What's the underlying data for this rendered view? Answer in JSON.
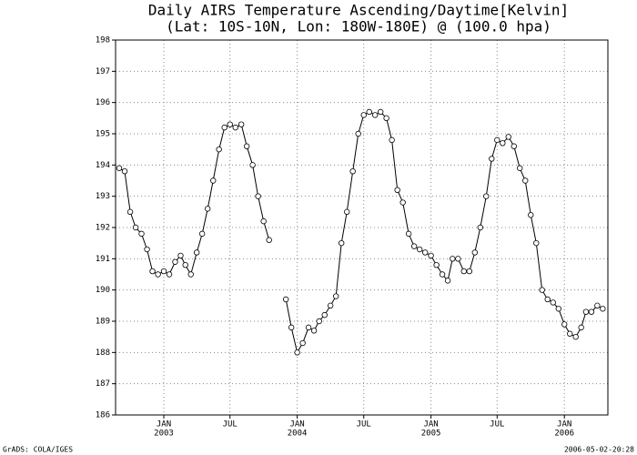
{
  "chart_data": {
    "type": "line",
    "title": "Daily AIRS Temperature Ascending/Daytime[Kelvin]",
    "subtitle": "(Lat: 10S-10N, Lon: 180W-180E) @ (100.0 hpa)",
    "footer_left": "GrADS: COLA/IGES",
    "footer_right": "2006-05-02-20:28",
    "color": "#000000",
    "grid": true,
    "xlim": [
      "2002-08-22",
      "2006-04-30"
    ],
    "xticks": [
      {
        "value": "2003-01-01",
        "label": "JAN",
        "sublabel": "2003"
      },
      {
        "value": "2003-07-01",
        "label": "JUL"
      },
      {
        "value": "2004-01-01",
        "label": "JAN",
        "sublabel": "2004"
      },
      {
        "value": "2004-07-01",
        "label": "JUL"
      },
      {
        "value": "2005-01-01",
        "label": "JAN",
        "sublabel": "2005"
      },
      {
        "value": "2005-07-01",
        "label": "JUL"
      },
      {
        "value": "2006-01-01",
        "label": "JAN",
        "sublabel": "2006"
      }
    ],
    "ylim": [
      186,
      198
    ],
    "yticks": [
      186,
      187,
      188,
      189,
      190,
      191,
      192,
      193,
      194,
      195,
      196,
      197,
      198
    ],
    "x": [
      "2002-09-01",
      "2002-09-16",
      "2002-10-01",
      "2002-10-16",
      "2002-11-01",
      "2002-11-16",
      "2002-12-01",
      "2002-12-16",
      "2003-01-01",
      "2003-01-16",
      "2003-02-01",
      "2003-02-16",
      "2003-03-01",
      "2003-03-16",
      "2003-04-01",
      "2003-04-16",
      "2003-05-01",
      "2003-05-16",
      "2003-06-01",
      "2003-06-16",
      "2003-07-01",
      "2003-07-16",
      "2003-08-01",
      "2003-08-16",
      "2003-09-01",
      "2003-09-16",
      "2003-10-01",
      "2003-10-16",
      "2003-11-01",
      "2003-11-16",
      "2003-12-01",
      "2003-12-16",
      "2004-01-01",
      "2004-01-16",
      "2004-02-01",
      "2004-02-16",
      "2004-03-01",
      "2004-03-16",
      "2004-04-01",
      "2004-04-16",
      "2004-05-01",
      "2004-05-16",
      "2004-06-01",
      "2004-06-16",
      "2004-07-01",
      "2004-07-16",
      "2004-08-01",
      "2004-08-16",
      "2004-09-01",
      "2004-09-16",
      "2004-10-01",
      "2004-10-16",
      "2004-11-01",
      "2004-11-16",
      "2004-12-01",
      "2004-12-16",
      "2005-01-01",
      "2005-01-16",
      "2005-02-01",
      "2005-02-16",
      "2005-03-01",
      "2005-03-16",
      "2005-04-01",
      "2005-04-16",
      "2005-05-01",
      "2005-05-16",
      "2005-06-01",
      "2005-06-16",
      "2005-07-01",
      "2005-07-16",
      "2005-08-01",
      "2005-08-16",
      "2005-09-01",
      "2005-09-16",
      "2005-10-01",
      "2005-10-16",
      "2005-11-01",
      "2005-11-16",
      "2005-12-01",
      "2005-12-16",
      "2006-01-01",
      "2006-01-16",
      "2006-02-01",
      "2006-02-16",
      "2006-03-01",
      "2006-03-16",
      "2006-04-01",
      "2006-04-16"
    ],
    "values": [
      193.9,
      193.8,
      192.5,
      192.0,
      191.8,
      191.3,
      190.6,
      190.5,
      190.6,
      190.5,
      190.9,
      191.1,
      190.8,
      190.5,
      191.2,
      191.8,
      192.6,
      193.5,
      194.5,
      195.2,
      195.3,
      195.2,
      195.3,
      194.6,
      194.0,
      193.0,
      192.2,
      191.6,
      null,
      null,
      189.7,
      188.8,
      188.0,
      188.3,
      188.8,
      188.7,
      189.0,
      189.2,
      189.5,
      189.8,
      191.5,
      192.5,
      193.8,
      195.0,
      195.6,
      195.7,
      195.6,
      195.7,
      195.5,
      194.8,
      193.2,
      192.8,
      191.8,
      191.4,
      191.3,
      191.2,
      191.1,
      190.8,
      190.5,
      190.3,
      191.0,
      191.0,
      190.6,
      190.6,
      191.2,
      192.0,
      193.0,
      194.2,
      194.8,
      194.7,
      194.9,
      194.6,
      193.9,
      193.5,
      192.4,
      191.5,
      190.0,
      189.7,
      189.6,
      189.4,
      188.9,
      188.6,
      188.5,
      188.8,
      189.3,
      189.3,
      189.5,
      189.4
    ]
  }
}
